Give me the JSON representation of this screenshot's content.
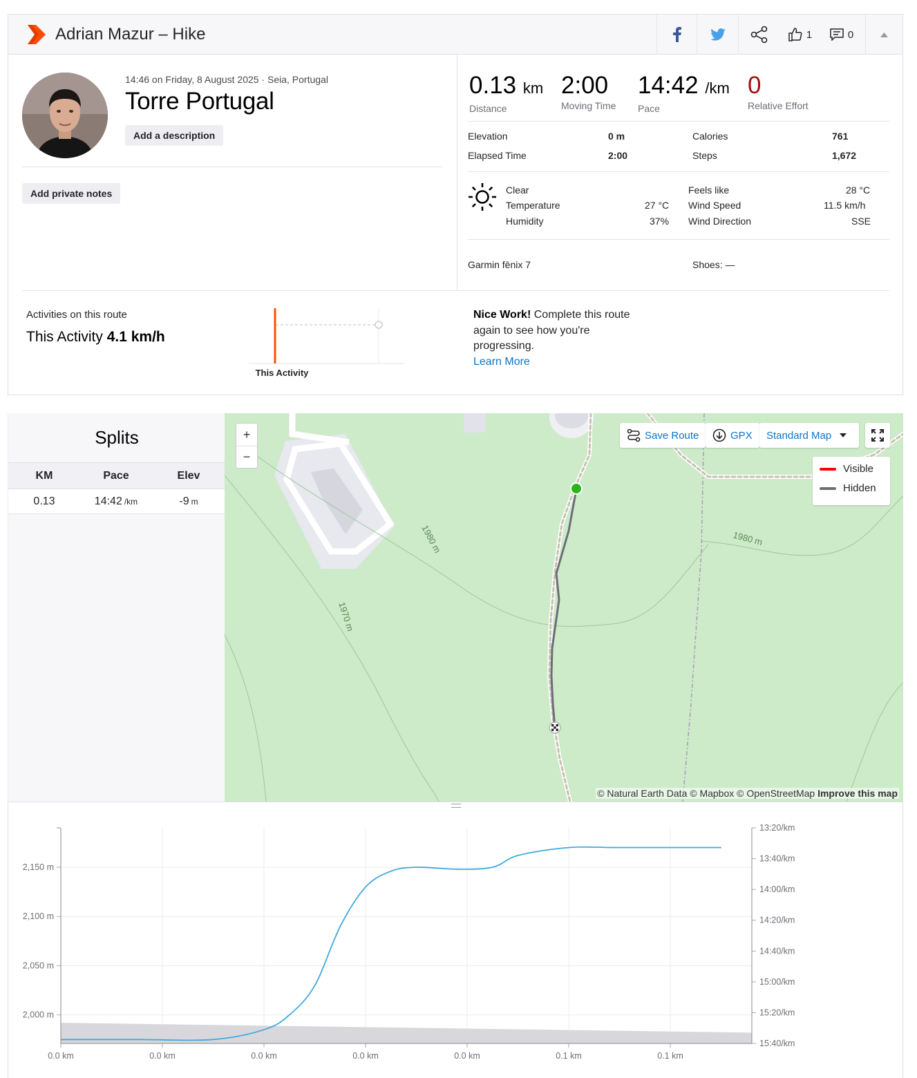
{
  "header": {
    "title": "Adrian Mazur – Hike",
    "kudos_count": "1",
    "comments_count": "0",
    "icons": [
      "facebook-icon",
      "twitter-icon",
      "share-icon",
      "thumbs-up-icon",
      "comment-icon",
      "caret-up-icon"
    ]
  },
  "activity": {
    "datetime": "14:46 on Friday, 8 August 2025 · Seia, Portugal",
    "name": "Torre Portugal",
    "add_description": "Add a description",
    "add_private_notes": "Add private notes"
  },
  "stats": {
    "distance": {
      "value": "0.13",
      "unit": "km",
      "label": "Distance"
    },
    "moving_time": {
      "value": "2:00",
      "label": "Moving Time"
    },
    "pace": {
      "value": "14:42",
      "unit": "/km",
      "label": "Pace"
    },
    "relative_effort": {
      "value": "0",
      "label": "Relative Effort"
    }
  },
  "details": {
    "elevation_label": "Elevation",
    "elevation_value": "0 m",
    "elapsed_label": "Elapsed Time",
    "elapsed_value": "2:00",
    "calories_label": "Calories",
    "calories_value": "761",
    "steps_label": "Steps",
    "steps_value": "1,672"
  },
  "weather": {
    "condition": "Clear",
    "temperature_label": "Temperature",
    "temperature_value": "27 °C",
    "humidity_label": "Humidity",
    "humidity_value": "37%",
    "feels_like_label": "Feels like",
    "feels_like_value": "28 °C",
    "wind_speed_label": "Wind Speed",
    "wind_speed_value": "11.5 km/h",
    "wind_direction_label": "Wind Direction",
    "wind_direction_value": "SSE"
  },
  "gear": {
    "device": "Garmin fēnix 7",
    "shoes": "Shoes: —"
  },
  "route": {
    "activities_label": "Activities on this route",
    "this_activity_prefix": "This Activity",
    "this_activity_speed": "4.1 km/h",
    "chart_label": "This Activity",
    "nice_bold": "Nice Work!",
    "nice_text": "Complete this route again to see how you're progressing.",
    "learn_more": "Learn More"
  },
  "splits": {
    "title": "Splits",
    "columns": [
      "KM",
      "Pace",
      "Elev"
    ],
    "rows": [
      {
        "km": "0.13",
        "pace": "14:42",
        "pace_unit": "/km",
        "elev": "-9",
        "elev_unit": "m"
      }
    ]
  },
  "map": {
    "zoom_in": "+",
    "zoom_out": "−",
    "save_route": "Save Route",
    "gpx": "GPX",
    "map_style": "Standard Map",
    "legend": [
      {
        "label": "Visible",
        "color": "#ff0000"
      },
      {
        "label": "Hidden",
        "color": "#6d6d78"
      }
    ],
    "contours": [
      "1980 m",
      "1970 m",
      "1980 m"
    ],
    "attribution": "© Natural Earth Data © Mapbox © OpenStreetMap",
    "improve": "Improve this map"
  },
  "chart_data": {
    "type": "line",
    "x_ticks": [
      "0.0 km",
      "0.0 km",
      "0.0 km",
      "0.0 km",
      "0.0 km",
      "0.1 km",
      "0.1 km"
    ],
    "y_left_ticks": [
      "2,150 m",
      "2,100 m",
      "2,050 m",
      "2,000 m"
    ],
    "y_right_ticks": [
      "13:20/km",
      "13:40/km",
      "14:00/km",
      "14:20/km",
      "14:40/km",
      "15:00/km",
      "15:20/km",
      "15:40/km"
    ],
    "y_left_range": [
      1971,
      2190
    ],
    "series": [
      {
        "values": [
          [
            0,
            1975
          ],
          [
            0.015,
            1975
          ],
          [
            0.03,
            1975
          ],
          [
            0.04,
            1985
          ],
          [
            0.045,
            2000
          ],
          [
            0.05,
            2030
          ],
          [
            0.055,
            2090
          ],
          [
            0.06,
            2130
          ],
          [
            0.065,
            2146
          ],
          [
            0.07,
            2150
          ],
          [
            0.078,
            2148
          ],
          [
            0.085,
            2150
          ],
          [
            0.09,
            2162
          ],
          [
            0.1,
            2170
          ],
          [
            0.11,
            2170
          ],
          [
            0.13,
            2170
          ]
        ]
      }
    ],
    "area_values": [
      [
        0,
        1992
      ],
      [
        0.136,
        1982
      ]
    ],
    "colors": {
      "line": "#3fa9de",
      "area": "#d8d8dc"
    }
  }
}
